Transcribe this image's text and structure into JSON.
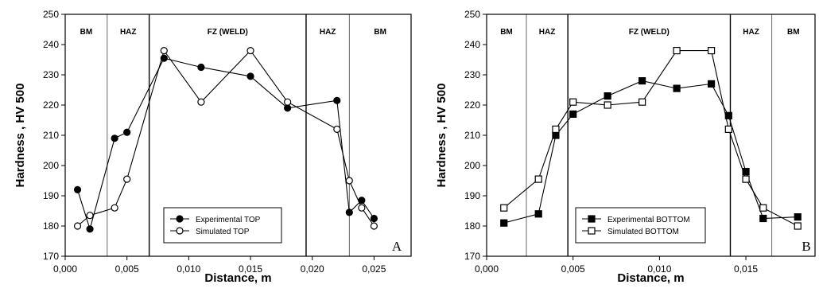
{
  "chart_data": [
    {
      "type": "line",
      "title": "",
      "xlabel": "Distance, m",
      "ylabel": "Hardness , HV 500",
      "xlim": [
        0.0,
        0.028
      ],
      "ylim": [
        170,
        250
      ],
      "xticks": [
        "0,000",
        "0,005",
        "0,010",
        "0,015",
        "0,020",
        "0,025"
      ],
      "yticks": [
        "170",
        "180",
        "190",
        "200",
        "210",
        "220",
        "230",
        "240",
        "250"
      ],
      "regions": [
        {
          "label": "BM",
          "from": 0.0,
          "to": 0.0034
        },
        {
          "label": "HAZ",
          "from": 0.0034,
          "to": 0.0068
        },
        {
          "label": "FZ (WELD)",
          "from": 0.0068,
          "to": 0.0195
        },
        {
          "label": "HAZ",
          "from": 0.0195,
          "to": 0.023
        },
        {
          "label": "BM",
          "from": 0.023,
          "to": 0.028
        }
      ],
      "corner_label": "A",
      "legend_position": "bottom-center",
      "series": [
        {
          "name": "Experimental TOP",
          "marker": "filled-circle",
          "x": [
            0.001,
            0.002,
            0.004,
            0.005,
            0.008,
            0.011,
            0.015,
            0.018,
            0.022,
            0.023,
            0.024,
            0.025
          ],
          "y": [
            192,
            179,
            209,
            211,
            235.5,
            232.5,
            229.5,
            219,
            221.5,
            184.5,
            188.5,
            182.5
          ]
        },
        {
          "name": "Simulated TOP",
          "marker": "open-circle",
          "x": [
            0.001,
            0.002,
            0.004,
            0.005,
            0.008,
            0.011,
            0.015,
            0.018,
            0.022,
            0.023,
            0.024,
            0.025
          ],
          "y": [
            180,
            183.5,
            186,
            195.5,
            238,
            221,
            238,
            221,
            212,
            195,
            186,
            180
          ]
        }
      ]
    },
    {
      "type": "line",
      "title": "",
      "xlabel": "Distance, m",
      "ylabel": "Hardness , HV 500",
      "xlim": [
        0.0,
        0.019
      ],
      "ylim": [
        170,
        250
      ],
      "xticks": [
        "0,000",
        "0,005",
        "0,010",
        "0,015"
      ],
      "yticks": [
        "170",
        "180",
        "190",
        "200",
        "210",
        "220",
        "230",
        "240",
        "250"
      ],
      "regions": [
        {
          "label": "BM",
          "from": 0.0,
          "to": 0.0023
        },
        {
          "label": "HAZ",
          "from": 0.0023,
          "to": 0.0047
        },
        {
          "label": "FZ (WELD)",
          "from": 0.0047,
          "to": 0.0141
        },
        {
          "label": "HAZ",
          "from": 0.0141,
          "to": 0.0165
        },
        {
          "label": "BM",
          "from": 0.0165,
          "to": 0.019
        }
      ],
      "corner_label": "B",
      "legend_position": "bottom-center",
      "series": [
        {
          "name": "Experimental BOTTOM",
          "marker": "filled-square",
          "x": [
            0.001,
            0.003,
            0.004,
            0.005,
            0.007,
            0.009,
            0.011,
            0.013,
            0.014,
            0.015,
            0.016,
            0.018
          ],
          "y": [
            181,
            184,
            210,
            217,
            223,
            228,
            225.5,
            227,
            216.5,
            198,
            182.5,
            183
          ]
        },
        {
          "name": "Simulated BOTTOM",
          "marker": "open-square",
          "x": [
            0.001,
            0.003,
            0.004,
            0.005,
            0.007,
            0.009,
            0.011,
            0.013,
            0.014,
            0.015,
            0.016,
            0.018
          ],
          "y": [
            186,
            195.5,
            212,
            221,
            220,
            221,
            238,
            238,
            212,
            195.5,
            186,
            180
          ]
        }
      ]
    }
  ]
}
